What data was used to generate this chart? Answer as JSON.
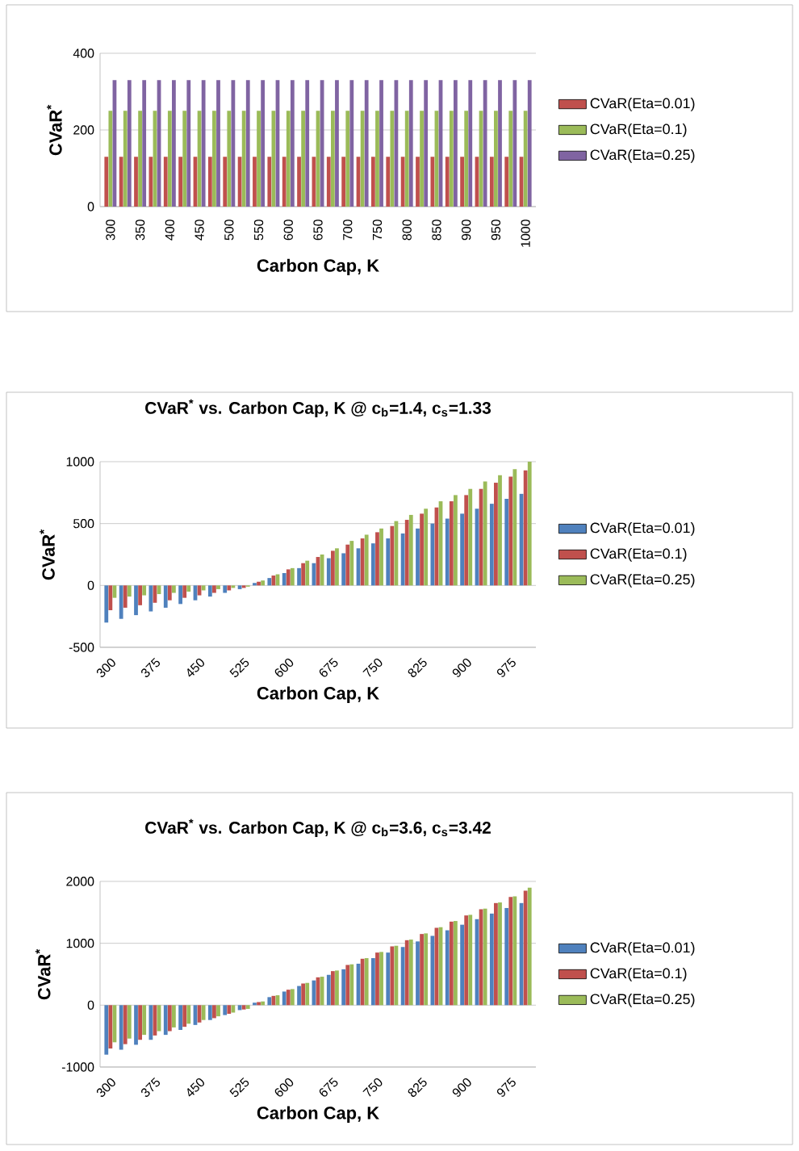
{
  "chart_data": [
    {
      "type": "bar",
      "xlabel": "Carbon Cap, K",
      "ylabel": "CVaR$^{*}$",
      "categories": [
        "300",
        null,
        "350",
        null,
        "400",
        null,
        "450",
        null,
        "500",
        null,
        "550",
        null,
        "600",
        null,
        "650",
        null,
        "700",
        null,
        "750",
        null,
        "800",
        null,
        "850",
        null,
        "900",
        null,
        "950",
        null,
        "1000"
      ],
      "ylim": [
        0,
        400
      ],
      "yticks": [
        0,
        200,
        400
      ],
      "grid": "y",
      "legend": "right",
      "series": [
        {
          "name": "CVaR(Eta=0.01)",
          "color": "#c0504d",
          "values": [
            130,
            130,
            130,
            130,
            130,
            130,
            130,
            130,
            130,
            130,
            130,
            130,
            130,
            130,
            130,
            130,
            130,
            130,
            130,
            130,
            130,
            130,
            130,
            130,
            130,
            130,
            130,
            130,
            130
          ]
        },
        {
          "name": "CVaR(Eta=0.1)",
          "color": "#9bbb59",
          "values": [
            250,
            250,
            250,
            250,
            250,
            250,
            250,
            250,
            250,
            250,
            250,
            250,
            250,
            250,
            250,
            250,
            250,
            250,
            250,
            250,
            250,
            250,
            250,
            250,
            250,
            250,
            250,
            250,
            250
          ]
        },
        {
          "name": "CVaR(Eta=0.25)",
          "color": "#8064a2",
          "values": [
            330,
            330,
            330,
            330,
            330,
            330,
            330,
            330,
            330,
            330,
            330,
            330,
            330,
            330,
            330,
            330,
            330,
            330,
            330,
            330,
            330,
            330,
            330,
            330,
            330,
            330,
            330,
            330,
            330
          ]
        }
      ]
    },
    {
      "type": "bar",
      "title": "CVaR$^{*}$ vs. Carbon Cap, K @ c$_{b}$=1.4, c$_{s}$=1.33",
      "xlabel": "Carbon Cap, K",
      "ylabel": "CVaR$^{*}$",
      "categories": [
        "300",
        null,
        null,
        "375",
        null,
        null,
        "450",
        null,
        null,
        "525",
        null,
        null,
        "600",
        null,
        null,
        "675",
        null,
        null,
        "750",
        null,
        null,
        "825",
        null,
        null,
        "900",
        null,
        null,
        "975",
        null
      ],
      "ylim": [
        -500,
        1000
      ],
      "yticks": [
        -500,
        0,
        500,
        1000
      ],
      "grid": "y",
      "legend": "right",
      "series": [
        {
          "name": "CVaR(Eta=0.01)",
          "color": "#4f81bd",
          "values": [
            -300,
            -270,
            -240,
            -210,
            -180,
            -150,
            -120,
            -90,
            -60,
            -30,
            20,
            60,
            100,
            140,
            180,
            220,
            260,
            300,
            340,
            380,
            420,
            460,
            500,
            540,
            580,
            620,
            660,
            700,
            740
          ]
        },
        {
          "name": "CVaR(Eta=0.1)",
          "color": "#c0504d",
          "values": [
            -200,
            -180,
            -160,
            -140,
            -120,
            -100,
            -80,
            -60,
            -40,
            -20,
            30,
            80,
            130,
            180,
            230,
            280,
            330,
            380,
            430,
            480,
            530,
            580,
            630,
            680,
            730,
            780,
            830,
            880,
            930
          ]
        },
        {
          "name": "CVaR(Eta=0.25)",
          "color": "#9bbb59",
          "values": [
            -100,
            -90,
            -80,
            -70,
            -60,
            -50,
            -40,
            -30,
            -20,
            -10,
            40,
            90,
            140,
            200,
            250,
            300,
            360,
            410,
            460,
            520,
            570,
            620,
            680,
            730,
            780,
            840,
            890,
            940,
            1000
          ]
        }
      ]
    },
    {
      "type": "bar",
      "title": "CVaR$^{*}$ vs. Carbon Cap, K @ c$_{b}$=3.6, c$_{s}$=3.42",
      "xlabel": "Carbon Cap, K",
      "ylabel": "CVaR$^{*}$",
      "categories": [
        "300",
        null,
        null,
        "375",
        null,
        null,
        "450",
        null,
        null,
        "525",
        null,
        null,
        "600",
        null,
        null,
        "675",
        null,
        null,
        "750",
        null,
        null,
        "825",
        null,
        null,
        "900",
        null,
        null,
        "975",
        null
      ],
      "ylim": [
        -1000,
        2000
      ],
      "yticks": [
        -1000,
        0,
        1000,
        2000
      ],
      "grid": "y",
      "legend": "right",
      "series": [
        {
          "name": "CVaR(Eta=0.01)",
          "color": "#4f81bd",
          "values": [
            -800,
            -720,
            -640,
            -560,
            -480,
            -400,
            -320,
            -240,
            -160,
            -80,
            40,
            130,
            220,
            310,
            400,
            490,
            580,
            670,
            760,
            850,
            940,
            1030,
            1120,
            1210,
            1300,
            1390,
            1480,
            1570,
            1650
          ]
        },
        {
          "name": "CVaR(Eta=0.1)",
          "color": "#c0504d",
          "values": [
            -700,
            -630,
            -560,
            -490,
            -420,
            -350,
            -280,
            -210,
            -140,
            -70,
            50,
            150,
            250,
            350,
            450,
            550,
            650,
            750,
            850,
            950,
            1050,
            1150,
            1250,
            1350,
            1450,
            1550,
            1650,
            1750,
            1850
          ]
        },
        {
          "name": "CVaR(Eta=0.25)",
          "color": "#9bbb59",
          "values": [
            -600,
            -540,
            -480,
            -420,
            -360,
            -300,
            -240,
            -180,
            -120,
            -60,
            60,
            160,
            260,
            360,
            460,
            560,
            660,
            760,
            860,
            960,
            1060,
            1160,
            1260,
            1360,
            1460,
            1560,
            1660,
            1760,
            1900
          ]
        }
      ]
    }
  ]
}
